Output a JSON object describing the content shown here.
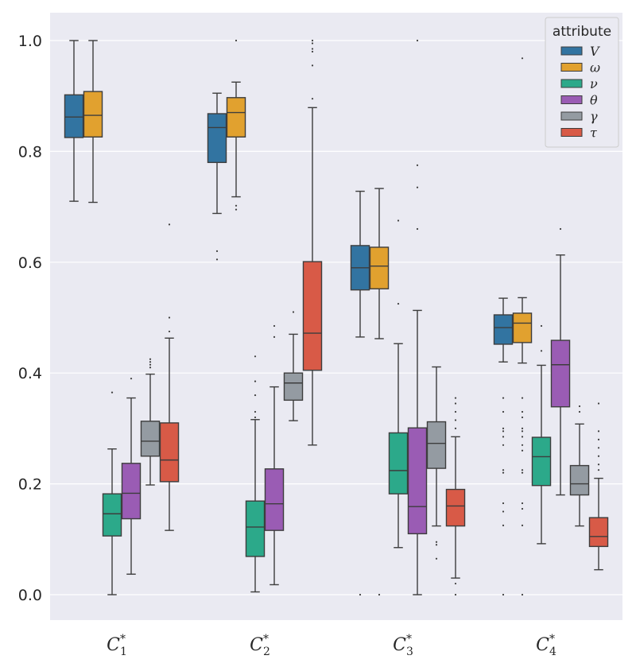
{
  "chart_data": {
    "type": "box",
    "title": "",
    "xlabel": "",
    "ylabel": "",
    "ylim": [
      -0.05,
      1.05
    ],
    "yticks": [
      "0.0",
      "0.2",
      "0.4",
      "0.6",
      "0.8",
      "1.0"
    ],
    "categories": [
      "C1*",
      "C2*",
      "C3*",
      "C4*"
    ],
    "category_labels": [
      {
        "base": "C",
        "sub": "1",
        "sup": "*"
      },
      {
        "base": "C",
        "sub": "2",
        "sup": "*"
      },
      {
        "base": "C",
        "sub": "3",
        "sup": "*"
      },
      {
        "base": "C",
        "sub": "4",
        "sup": "*"
      }
    ],
    "legend": {
      "title": "attribute",
      "position": "top-right"
    },
    "series": [
      {
        "name": "V",
        "color": "#3274a1",
        "boxes": [
          {
            "whislo": 0.71,
            "q1": 0.825,
            "med": 0.862,
            "q3": 0.902,
            "whishi": 1.0,
            "fliers": []
          },
          {
            "whislo": 0.688,
            "q1": 0.78,
            "med": 0.843,
            "q3": 0.868,
            "whishi": 0.905,
            "fliers": [
              0.605,
              0.62
            ]
          },
          {
            "whislo": 0.465,
            "q1": 0.55,
            "med": 0.59,
            "q3": 0.63,
            "whishi": 0.728,
            "fliers": [
              0.0
            ]
          },
          {
            "whislo": 0.42,
            "q1": 0.452,
            "med": 0.482,
            "q3": 0.505,
            "whishi": 0.535,
            "fliers": [
              0.0,
              0.125,
              0.15,
              0.165,
              0.22,
              0.225,
              0.27,
              0.285,
              0.295,
              0.3,
              0.33,
              0.355
            ]
          }
        ]
      },
      {
        "name": "ω",
        "color": "#e1a12f",
        "boxes": [
          {
            "whislo": 0.708,
            "q1": 0.826,
            "med": 0.865,
            "q3": 0.908,
            "whishi": 1.0,
            "fliers": []
          },
          {
            "whislo": 0.718,
            "q1": 0.826,
            "med": 0.87,
            "q3": 0.897,
            "whishi": 0.925,
            "fliers": [
              0.695,
              0.702,
              1.0
            ]
          },
          {
            "whislo": 0.462,
            "q1": 0.552,
            "med": 0.593,
            "q3": 0.627,
            "whishi": 0.733,
            "fliers": [
              0.0
            ]
          },
          {
            "whislo": 0.418,
            "q1": 0.455,
            "med": 0.49,
            "q3": 0.508,
            "whishi": 0.536,
            "fliers": [
              0.0,
              0.125,
              0.155,
              0.165,
              0.22,
              0.225,
              0.26,
              0.27,
              0.285,
              0.295,
              0.3,
              0.32,
              0.33,
              0.355,
              0.968
            ]
          }
        ]
      },
      {
        "name": "ν",
        "color": "#2ca98a",
        "boxes": [
          {
            "whislo": 0.0,
            "q1": 0.106,
            "med": 0.146,
            "q3": 0.182,
            "whishi": 0.263,
            "fliers": [
              0.365
            ]
          },
          {
            "whislo": 0.005,
            "q1": 0.069,
            "med": 0.122,
            "q3": 0.169,
            "whishi": 0.316,
            "fliers": [
              0.32,
              0.33,
              0.36,
              0.385,
              0.43
            ]
          },
          {
            "whislo": 0.085,
            "q1": 0.182,
            "med": 0.224,
            "q3": 0.292,
            "whishi": 0.453,
            "fliers": [
              0.525,
              0.675
            ]
          },
          {
            "whislo": 0.092,
            "q1": 0.197,
            "med": 0.249,
            "q3": 0.284,
            "whishi": 0.414,
            "fliers": [
              0.44,
              0.485
            ]
          }
        ]
      },
      {
        "name": "θ",
        "color": "#9a5cb4",
        "boxes": [
          {
            "whislo": 0.037,
            "q1": 0.137,
            "med": 0.183,
            "q3": 0.237,
            "whishi": 0.355,
            "fliers": [
              0.39
            ]
          },
          {
            "whislo": 0.018,
            "q1": 0.116,
            "med": 0.164,
            "q3": 0.227,
            "whishi": 0.375,
            "fliers": [
              0.465,
              0.485
            ]
          },
          {
            "whislo": 0.0,
            "q1": 0.11,
            "med": 0.159,
            "q3": 0.301,
            "whishi": 0.513,
            "fliers": [
              0.66,
              0.735,
              0.775,
              1.0
            ]
          },
          {
            "whislo": 0.18,
            "q1": 0.339,
            "med": 0.415,
            "q3": 0.459,
            "whishi": 0.613,
            "fliers": [
              0.66
            ]
          }
        ]
      },
      {
        "name": "γ",
        "color": "#949ba2",
        "boxes": [
          {
            "whislo": 0.198,
            "q1": 0.25,
            "med": 0.277,
            "q3": 0.313,
            "whishi": 0.398,
            "fliers": [
              0.41,
              0.415,
              0.42,
              0.425
            ]
          },
          {
            "whislo": 0.314,
            "q1": 0.351,
            "med": 0.382,
            "q3": 0.4,
            "whishi": 0.47,
            "fliers": [
              0.51
            ]
          },
          {
            "whislo": 0.124,
            "q1": 0.228,
            "med": 0.273,
            "q3": 0.312,
            "whishi": 0.411,
            "fliers": [
              0.065,
              0.09,
              0.095
            ]
          },
          {
            "whislo": 0.124,
            "q1": 0.18,
            "med": 0.2,
            "q3": 0.233,
            "whishi": 0.308,
            "fliers": [
              0.33,
              0.34
            ]
          }
        ]
      },
      {
        "name": "τ",
        "color": "#d85a47",
        "boxes": [
          {
            "whislo": 0.116,
            "q1": 0.204,
            "med": 0.243,
            "q3": 0.31,
            "whishi": 0.463,
            "fliers": [
              0.475,
              0.5,
              0.668
            ]
          },
          {
            "whislo": 0.27,
            "q1": 0.405,
            "med": 0.472,
            "q3": 0.601,
            "whishi": 0.879,
            "fliers": [
              0.895,
              0.955,
              0.98,
              0.985,
              0.995,
              1.0
            ]
          },
          {
            "whislo": 0.03,
            "q1": 0.124,
            "med": 0.16,
            "q3": 0.19,
            "whishi": 0.285,
            "fliers": [
              0.0,
              0.02,
              0.3,
              0.315,
              0.33,
              0.345,
              0.355
            ]
          },
          {
            "whislo": 0.045,
            "q1": 0.087,
            "med": 0.105,
            "q3": 0.139,
            "whishi": 0.21,
            "fliers": [
              0.225,
              0.235,
              0.25,
              0.265,
              0.28,
              0.295,
              0.345
            ]
          }
        ]
      }
    ]
  }
}
